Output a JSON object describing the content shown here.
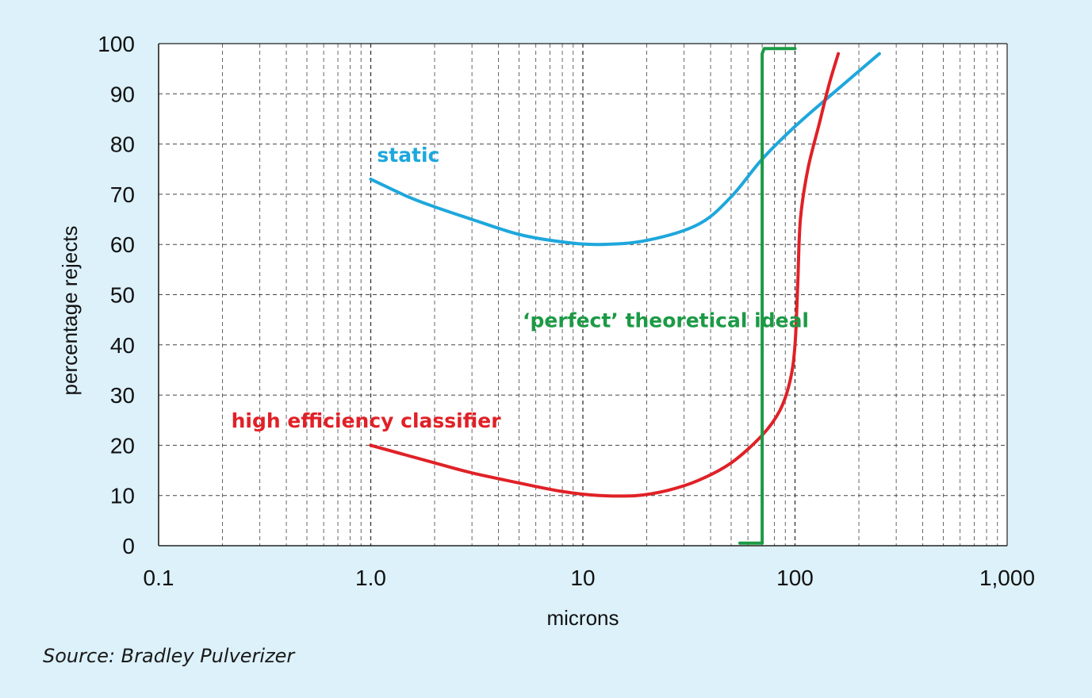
{
  "chart_data": {
    "type": "line",
    "xscale": "log",
    "xlim": [
      0.1,
      1000
    ],
    "ylim": [
      0,
      100
    ],
    "grid": true,
    "xlabel": "microns",
    "ylabel": "percentage rejects",
    "xticks": [
      {
        "value": 0.1,
        "label": "0.1"
      },
      {
        "value": 1,
        "label": "1.0"
      },
      {
        "value": 10,
        "label": "10"
      },
      {
        "value": 100,
        "label": "100"
      },
      {
        "value": 1000,
        "label": "1,000"
      }
    ],
    "yticks": [
      {
        "value": 0,
        "label": "0"
      },
      {
        "value": 10,
        "label": "10"
      },
      {
        "value": 20,
        "label": "20"
      },
      {
        "value": 30,
        "label": "30"
      },
      {
        "value": 40,
        "label": "40"
      },
      {
        "value": 50,
        "label": "50"
      },
      {
        "value": 60,
        "label": "60"
      },
      {
        "value": 70,
        "label": "70"
      },
      {
        "value": 80,
        "label": "80"
      },
      {
        "value": 90,
        "label": "90"
      },
      {
        "value": 100,
        "label": "100"
      }
    ],
    "series": [
      {
        "name": "static",
        "color": "#1ea7dc",
        "points": [
          [
            1.0,
            73
          ],
          [
            1.5,
            69.5
          ],
          [
            2,
            67.5
          ],
          [
            3,
            65
          ],
          [
            5,
            62
          ],
          [
            8,
            60.5
          ],
          [
            12,
            60
          ],
          [
            20,
            60.8
          ],
          [
            35,
            64
          ],
          [
            50,
            69.5
          ],
          [
            70,
            77
          ],
          [
            100,
            83.5
          ],
          [
            150,
            90
          ],
          [
            250,
            98
          ]
        ]
      },
      {
        "name": "high efficiency classifier",
        "color": "#e02127",
        "points": [
          [
            1.0,
            20
          ],
          [
            2,
            16.5
          ],
          [
            3,
            14.5
          ],
          [
            5,
            12.5
          ],
          [
            8,
            10.8
          ],
          [
            12,
            10
          ],
          [
            18,
            10
          ],
          [
            25,
            11
          ],
          [
            35,
            13
          ],
          [
            50,
            16.5
          ],
          [
            70,
            22
          ],
          [
            85,
            27
          ],
          [
            95,
            33
          ],
          [
            100,
            40
          ],
          [
            103,
            52
          ],
          [
            106,
            65
          ],
          [
            115,
            75
          ],
          [
            130,
            84
          ],
          [
            145,
            92
          ],
          [
            160,
            98
          ]
        ]
      },
      {
        "name": "'perfect' theoretical ideal",
        "color": "#1c9a45",
        "points": [
          [
            55,
            0.5
          ],
          [
            70,
            0.5
          ],
          [
            70,
            98
          ],
          [
            71.5,
            99
          ],
          [
            100,
            99
          ]
        ]
      }
    ],
    "annotations": [
      {
        "text": "static",
        "series": 0,
        "at": [
          1.07,
          76.5
        ]
      },
      {
        "text": "high efficiency classifier",
        "series": 1,
        "at": [
          0.22,
          23.5
        ]
      },
      {
        "text": "‘perfect’ theoretical ideal",
        "series": 2,
        "at": [
          5.2,
          43.5
        ]
      }
    ]
  },
  "source": "Source: Bradley Pulverizer"
}
